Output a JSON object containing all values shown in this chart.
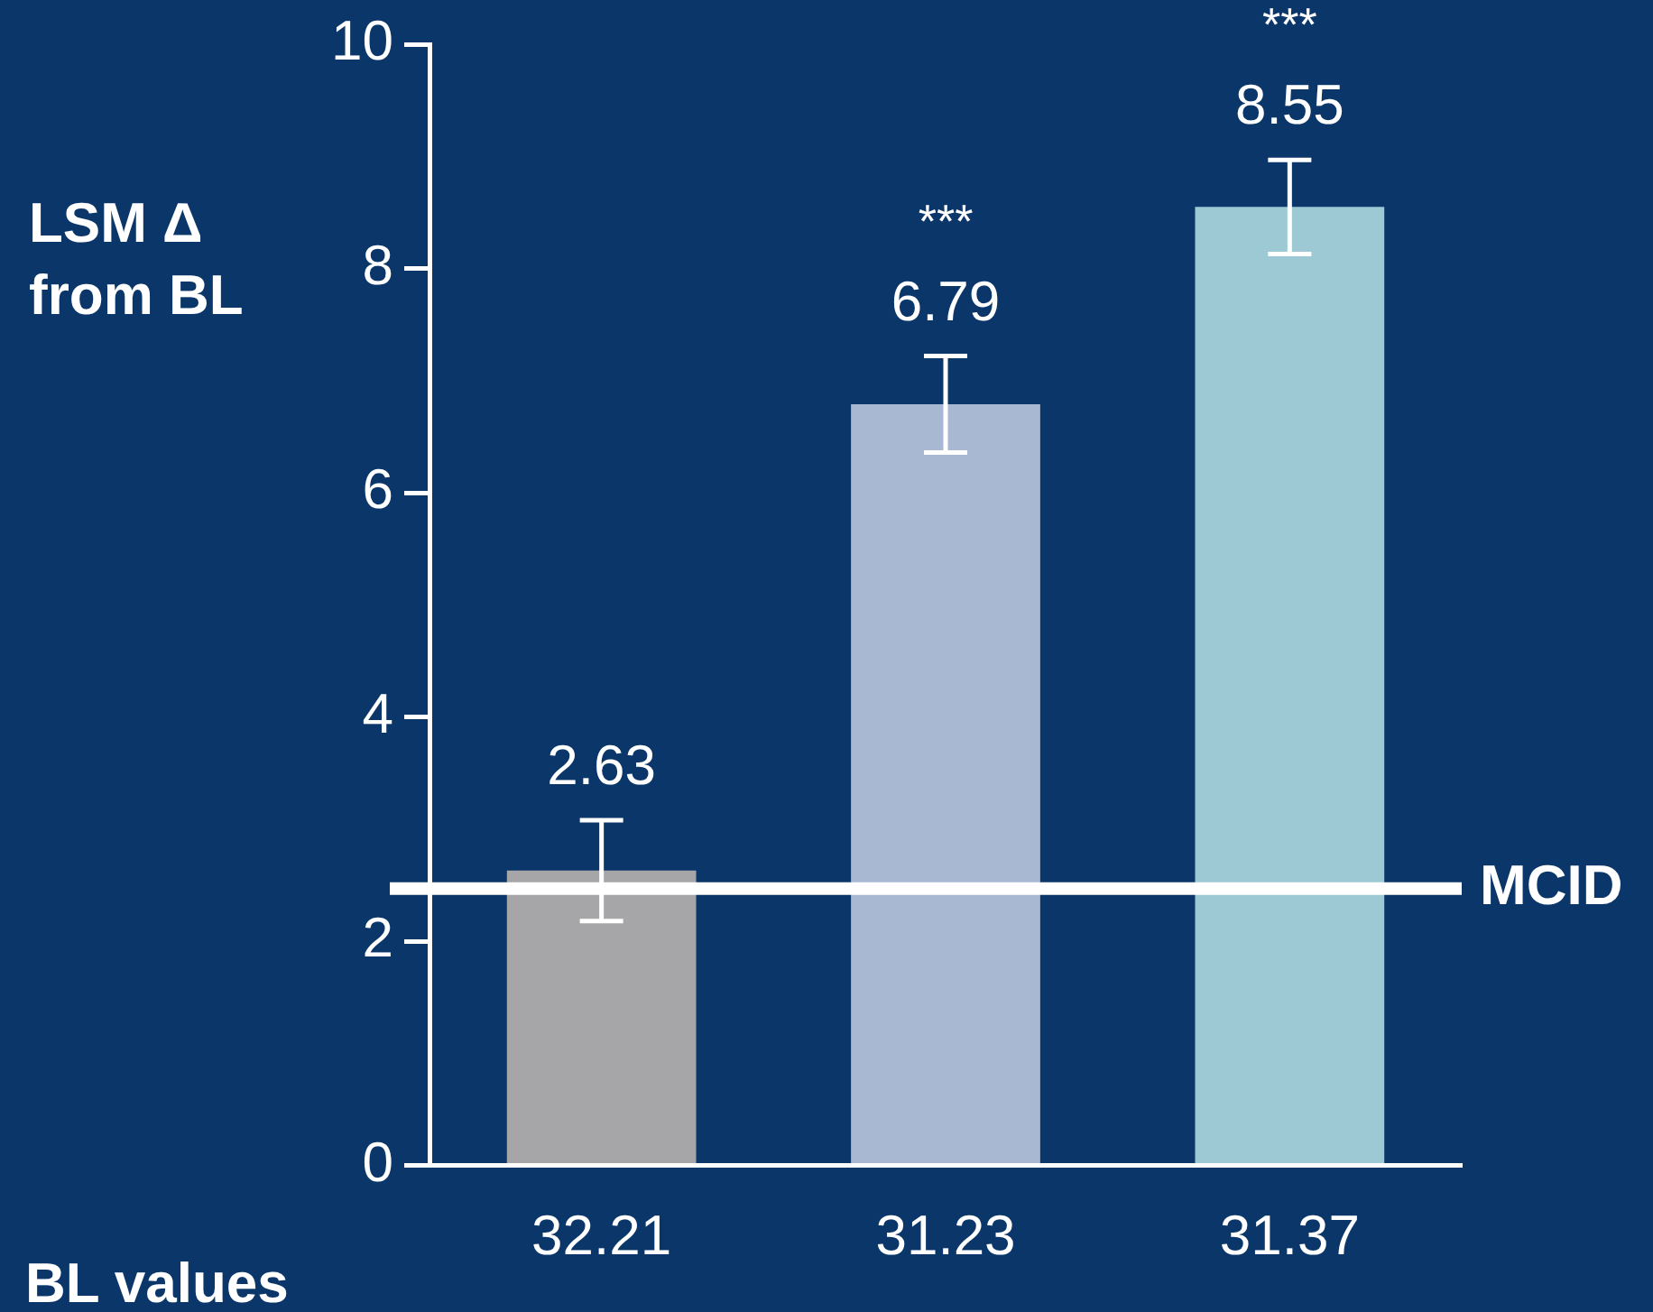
{
  "chart_data": {
    "type": "bar",
    "ylabel": "LSM Δ from BL",
    "xlabel": "BL values",
    "categories": [
      "32.21",
      "31.23",
      "31.37"
    ],
    "values": [
      2.63,
      6.79,
      8.55
    ],
    "colors": [
      "#a6a6a8",
      "#a9b8d2",
      "#9cc9d3"
    ],
    "errors": [
      0.45,
      0.43,
      0.42
    ],
    "data_labels": true,
    "ylim": [
      0,
      10
    ],
    "yticks": [
      0,
      2,
      4,
      6,
      8,
      10
    ],
    "grid": false,
    "legend": false,
    "ref_lines": [
      {
        "axis": "y",
        "value": 2.47,
        "label": "MCID",
        "color": "#ffffff"
      }
    ],
    "annotations": [
      "***",
      "***"
    ]
  }
}
